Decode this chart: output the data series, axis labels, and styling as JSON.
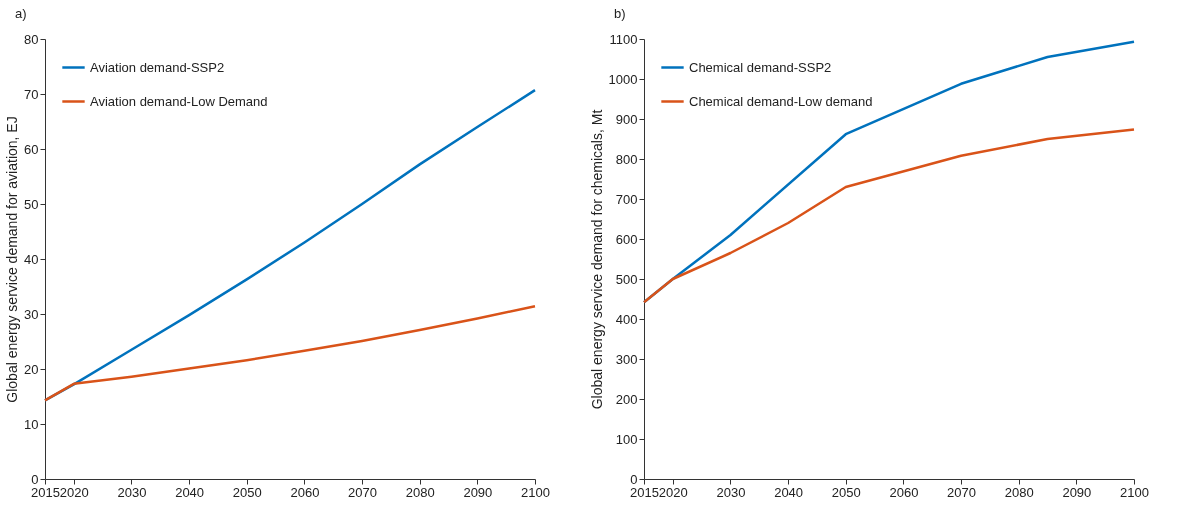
{
  "chart_data": [
    {
      "type": "line",
      "title": "a)",
      "ylabel": "Global energy service demand for aviation, EJ",
      "x": [
        2015,
        2020,
        2030,
        2040,
        2050,
        2060,
        2070,
        2080,
        2090,
        2100
      ],
      "series": [
        {
          "name": "Aviation demand-SSP2",
          "color": "#0072bd",
          "values": [
            14.3,
            17.2,
            23.5,
            29.8,
            36.3,
            43.0,
            50.0,
            57.2,
            64.0,
            70.7
          ]
        },
        {
          "name": "Aviation demand-Low Demand",
          "color": "#d95319",
          "values": [
            14.3,
            17.3,
            18.6,
            20.1,
            21.6,
            23.3,
            25.1,
            27.1,
            29.2,
            31.4
          ]
        }
      ],
      "xlim": [
        2015,
        2100
      ],
      "xticks": [
        2015,
        2020,
        2030,
        2040,
        2050,
        2060,
        2070,
        2080,
        2090,
        2100
      ],
      "ylim": [
        0,
        80
      ],
      "yticks": [
        0,
        10,
        20,
        30,
        40,
        50,
        60,
        70,
        80
      ],
      "grid": false,
      "legend": "top left",
      "marker": "none",
      "line_style": "solid"
    },
    {
      "type": "line",
      "title": "b)",
      "ylabel": "Global energy service demand for chemicals, Mt",
      "xlim": [
        2015,
        2100
      ],
      "series": [
        {
          "name": "Chemical demand-SSP2",
          "color": "#0072bd",
          "x": [
            2015,
            2020,
            2030,
            2050,
            2070,
            2085,
            2100
          ],
          "values": [
            442,
            500,
            610,
            862,
            988,
            1055,
            1093
          ]
        },
        {
          "name": "Chemical demand-Low demand",
          "color": "#d95319",
          "x": [
            2015,
            2020,
            2030,
            2040,
            2050,
            2070,
            2085,
            2100
          ],
          "values": [
            442,
            500,
            565,
            640,
            730,
            808,
            850,
            874
          ]
        }
      ],
      "xticks": [
        2015,
        2020,
        2030,
        2040,
        2050,
        2060,
        2070,
        2080,
        2090,
        2100
      ],
      "ylim": [
        0,
        1100
      ],
      "yticks": [
        0,
        100,
        200,
        300,
        400,
        500,
        600,
        700,
        800,
        900,
        1000,
        1100
      ],
      "grid": false,
      "legend": "top left",
      "marker": "none",
      "line_style": "solid"
    }
  ]
}
